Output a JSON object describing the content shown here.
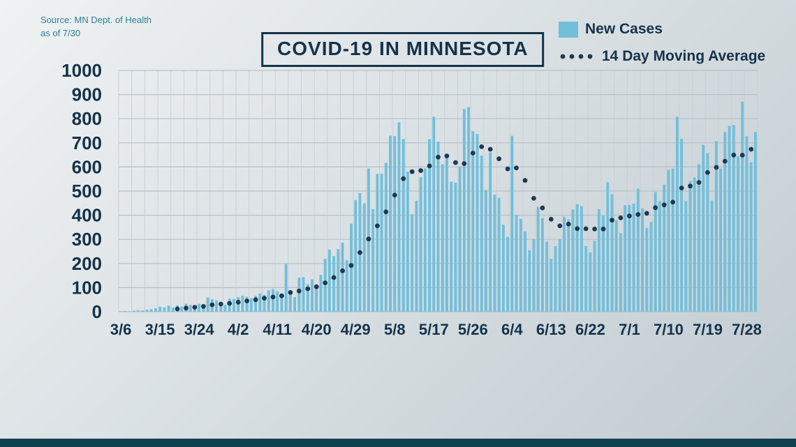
{
  "source": {
    "line1": "Source: MN Dept. of Health",
    "line2": "as of 7/30"
  },
  "title": "COVID-19 IN MINNESOTA",
  "legend": {
    "bars": "New Cases",
    "line": "14 Day Moving Average"
  },
  "colors": {
    "bar": "#72bfdb",
    "ma_dot": "#1c3a50",
    "text": "#16324a",
    "grid": "#b6c1c8",
    "grid_vertical": "#c9d1d6",
    "footer": "#12414f",
    "source_text": "#2b7f91",
    "background_top": "#f0f2f3",
    "background_bottom": "#c0cbd1"
  },
  "chart_data": {
    "type": "bar",
    "title": "COVID-19 IN MINNESOTA",
    "subtitle": "Source: MN Dept. of Health as of 7/30",
    "start_date": "3/6",
    "end_date": "7/30",
    "ylim": [
      0,
      1000
    ],
    "y_ticks": [
      0,
      100,
      200,
      300,
      400,
      500,
      600,
      700,
      800,
      900,
      1000
    ],
    "x_tick_labels": [
      "3/6",
      "3/15",
      "3/24",
      "4/2",
      "4/11",
      "4/20",
      "4/29",
      "5/8",
      "5/17",
      "5/26",
      "6/4",
      "6/13",
      "6/22",
      "7/1",
      "7/10",
      "7/19",
      "7/28"
    ],
    "x_tick_indices": [
      0,
      9,
      18,
      27,
      36,
      45,
      54,
      63,
      72,
      81,
      90,
      99,
      108,
      117,
      126,
      135,
      144
    ],
    "grid": true,
    "legend_position": "top-right",
    "series": [
      {
        "name": "New Cases",
        "type": "bar",
        "values": [
          2,
          3,
          2,
          4,
          6,
          5,
          8,
          10,
          14,
          21,
          18,
          25,
          17,
          26,
          21,
          33,
          29,
          26,
          33,
          25,
          59,
          52,
          47,
          35,
          28,
          54,
          53,
          60,
          66,
          62,
          56,
          66,
          76,
          70,
          88,
          94,
          85,
          66,
          198,
          75,
          60,
          141,
          143,
          114,
          134,
          104,
          153,
          220,
          257,
          231,
          259,
          286,
          214,
          365,
          463,
          492,
          449,
          594,
          425,
          571,
          572,
          617,
          730,
          728,
          785,
          716,
          580,
          404,
          460,
          557,
          594,
          716,
          808,
          705,
          611,
          645,
          539,
          535,
          601,
          840,
          847,
          748,
          737,
          647,
          504,
          661,
          485,
          472,
          361,
          310,
          729,
          402,
          385,
          332,
          255,
          301,
          435,
          388,
          290,
          219,
          272,
          300,
          394,
          382,
          423,
          446,
          438,
          272,
          246,
          294,
          425,
          397,
          537,
          487,
          379,
          325,
          442,
          443,
          448,
          510,
          428,
          347,
          372,
          496,
          458,
          527,
          588,
          594,
          808,
          717,
          458,
          542,
          556,
          611,
          692,
          657,
          461,
          707,
          594,
          745,
          770,
          774,
          645,
          871,
          727,
          619,
          745
        ]
      },
      {
        "name": "14 Day Moving Average",
        "type": "line",
        "style": "dotted",
        "derivation": "trailing 14-day mean of New Cases values"
      }
    ]
  }
}
